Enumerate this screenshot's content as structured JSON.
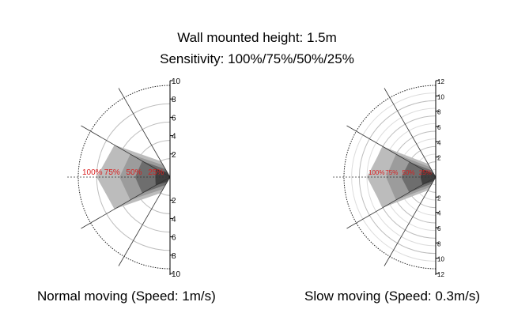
{
  "header": {
    "title": "Wall mounted height: 1.5m",
    "subtitle": "Sensitivity: 100%/75%/50%/25%"
  },
  "chart_data": [
    {
      "type": "polar-area",
      "caption": "Normal moving (Speed: 1m/s)",
      "r_max": 10,
      "axis_ticks_upper": [
        "10",
        "8",
        "6",
        "4",
        "2"
      ],
      "axis_ticks_lower": [
        "2",
        "4",
        "6",
        "8",
        "10"
      ],
      "sensitivity_labels": [
        "100%",
        "75%",
        "50%",
        "25%"
      ],
      "label_color": "#d92020",
      "angles_deg": [
        90,
        60,
        30,
        0,
        -30,
        -60,
        -90
      ],
      "series": [
        {
          "name": "100%",
          "fill": "#bcbcbc",
          "r": [
            0,
            2,
            7,
            8,
            7,
            2,
            0
          ]
        },
        {
          "name": "75%",
          "fill": "#9c9c9c",
          "r": [
            0,
            1.5,
            5,
            5.5,
            5,
            1.5,
            0
          ]
        },
        {
          "name": "50%",
          "fill": "#6e6e6e",
          "r": [
            0,
            1,
            3.5,
            3.8,
            3.5,
            1,
            0
          ]
        },
        {
          "name": "25%",
          "fill": "#404040",
          "r": [
            0,
            0.6,
            1.8,
            1.6,
            1.8,
            0.6,
            0
          ]
        }
      ]
    },
    {
      "type": "polar-area",
      "caption": "Slow moving (Speed: 0.3m/s)",
      "r_max": 12,
      "axis_ticks_upper": [
        "12",
        "10",
        "8",
        "6",
        "4",
        "2"
      ],
      "axis_ticks_lower": [
        "2",
        "4",
        "6",
        "8",
        "10",
        "12"
      ],
      "sensitivity_labels": [
        "100%",
        "75%",
        "50%",
        "25%"
      ],
      "label_color": "#d92020",
      "angles_deg": [
        90,
        60,
        30,
        0,
        -30,
        -60,
        -90
      ],
      "series": [
        {
          "name": "100%",
          "fill": "#bcbcbc",
          "r": [
            0,
            2,
            8,
            9,
            8,
            2,
            0
          ]
        },
        {
          "name": "75%",
          "fill": "#9c9c9c",
          "r": [
            0,
            1.5,
            6,
            6.5,
            6,
            1.5,
            0
          ]
        },
        {
          "name": "50%",
          "fill": "#6e6e6e",
          "r": [
            0,
            1,
            4,
            4.5,
            4,
            1,
            0
          ]
        },
        {
          "name": "25%",
          "fill": "#404040",
          "r": [
            0,
            0.6,
            2,
            2,
            2,
            0.6,
            0
          ]
        }
      ]
    }
  ]
}
